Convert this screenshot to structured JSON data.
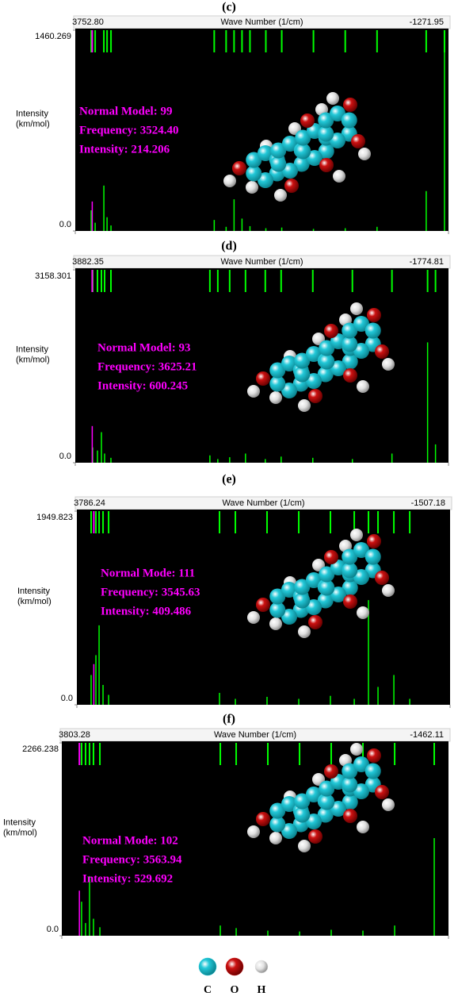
{
  "chart_data": [
    {
      "type": "stem",
      "title": "(c)",
      "xlabel": "Wave Number (1/cm)",
      "ylabel": [
        "Intensity",
        "(km/mol)"
      ],
      "xlim": [
        3752.8,
        -1271.95
      ],
      "ylim": [
        0,
        1460.269
      ],
      "xticks": [
        {
          "value": 3752.8,
          "label": "3752.80"
        },
        -1271.95
      ],
      "yticks": [
        1460.269,
        {
          "value": 0,
          "label": "0.0"
        }
      ],
      "annotations": [
        "Normal Model: 99",
        "Frequency: 3524.40",
        "Intensity: 214.206"
      ],
      "background": "#000000",
      "series": [
        {
          "color": "#00ff00",
          "x": [
            3539,
            3485,
            3368,
            3325,
            3272,
            1882,
            1722,
            1615,
            1508,
            1401,
            1187,
            973,
            546,
            118,
            -310,
            -972,
            -1218
          ],
          "values": [
            150,
            60,
            330,
            100,
            40,
            80,
            30,
            230,
            90,
            35,
            20,
            25,
            15,
            20,
            30,
            290,
            1460
          ]
        },
        {
          "color": "#ff00ff",
          "x": [
            3524.4
          ],
          "values": [
            214.206
          ]
        }
      ]
    },
    {
      "type": "stem",
      "title": "(d)",
      "xlabel": "Wave Number (1/cm)",
      "ylabel": [
        "Intensity",
        "(km/mol)"
      ],
      "xlim": [
        3882.35,
        -1774.81
      ],
      "ylim": [
        0,
        3158.301
      ],
      "xticks": [
        3882.35,
        -1774.81
      ],
      "yticks": [
        3158.301,
        {
          "value": 0,
          "label": "0.0"
        }
      ],
      "annotations": [
        "Normal Model: 93",
        "Frequency: 3625.21",
        "Intensity: 600.245"
      ],
      "background": "#000000",
      "series": [
        {
          "color": "#00ff00",
          "x": [
            3618,
            3546,
            3486,
            3438,
            3342,
            1842,
            1722,
            1542,
            1302,
            1002,
            762,
            282,
            -318,
            -918,
            -1458,
            -1578
          ],
          "values": [
            250,
            200,
            500,
            150,
            80,
            120,
            60,
            90,
            150,
            60,
            100,
            80,
            60,
            150,
            1970,
            300
          ]
        },
        {
          "color": "#ff00ff",
          "x": [
            3625.21
          ],
          "values": [
            600.245
          ]
        }
      ]
    },
    {
      "type": "stem",
      "title": "(e)",
      "xlabel": "Wave Number (1/cm)",
      "ylabel": [
        "Intensity",
        "(km/mol)"
      ],
      "xlim": [
        3786.24,
        -1507.18
      ],
      "ylim": [
        0,
        1949.823
      ],
      "xticks": [
        3786.24,
        -1507.18
      ],
      "yticks": [
        1949.823,
        {
          "value": 0,
          "label": "0.0"
        }
      ],
      "annotations": [
        "Normal Mode: 111",
        "Frequency: 3545.63",
        "Intensity: 409.486"
      ],
      "background": "#000000",
      "series": [
        {
          "color": "#00ff00",
          "x": [
            3584,
            3516,
            3471,
            3415,
            3336,
            1763,
            1538,
            1089,
            639,
            190,
            -148,
            -350,
            -485,
            -710,
            -935
          ],
          "values": [
            300,
            500,
            800,
            200,
            100,
            120,
            60,
            80,
            60,
            90,
            60,
            1054,
            180,
            300,
            60
          ]
        },
        {
          "color": "#ff00ff",
          "x": [
            3545.63
          ],
          "values": [
            409.486
          ]
        }
      ]
    },
    {
      "type": "stem",
      "title": "(f)",
      "xlabel": "Wave Number (1/cm)",
      "ylabel": [
        "Intensity",
        "(km/mol)"
      ],
      "xlim": [
        3803.28,
        -1462.11
      ],
      "ylim": [
        0,
        2266.238
      ],
      "xticks": [
        3803.28,
        -1462.11
      ],
      "yticks": [
        2266.238,
        {
          "value": 0,
          "label": "0.0"
        }
      ],
      "annotations": [
        "Normal Mode: 102",
        "Frequency: 3563.94",
        "Intensity: 529.692"
      ],
      "background": "#000000",
      "series": [
        {
          "color": "#00ff00",
          "x": [
            3534,
            3480,
            3426,
            3372,
            3285,
            1645,
            1429,
            998,
            566,
            135,
            -297,
            -729,
            -1268
          ],
          "values": [
            400,
            150,
            700,
            200,
            100,
            120,
            90,
            60,
            50,
            70,
            60,
            120,
            1147
          ]
        },
        {
          "color": "#ff00ff",
          "x": [
            3563.94
          ],
          "values": [
            529.692
          ]
        }
      ]
    }
  ],
  "atom_legend": [
    {
      "label": "C",
      "color": "#22c8d8"
    },
    {
      "label": "O",
      "color": "#cc1111"
    },
    {
      "label": "H",
      "color": "#e0e0e0"
    }
  ]
}
